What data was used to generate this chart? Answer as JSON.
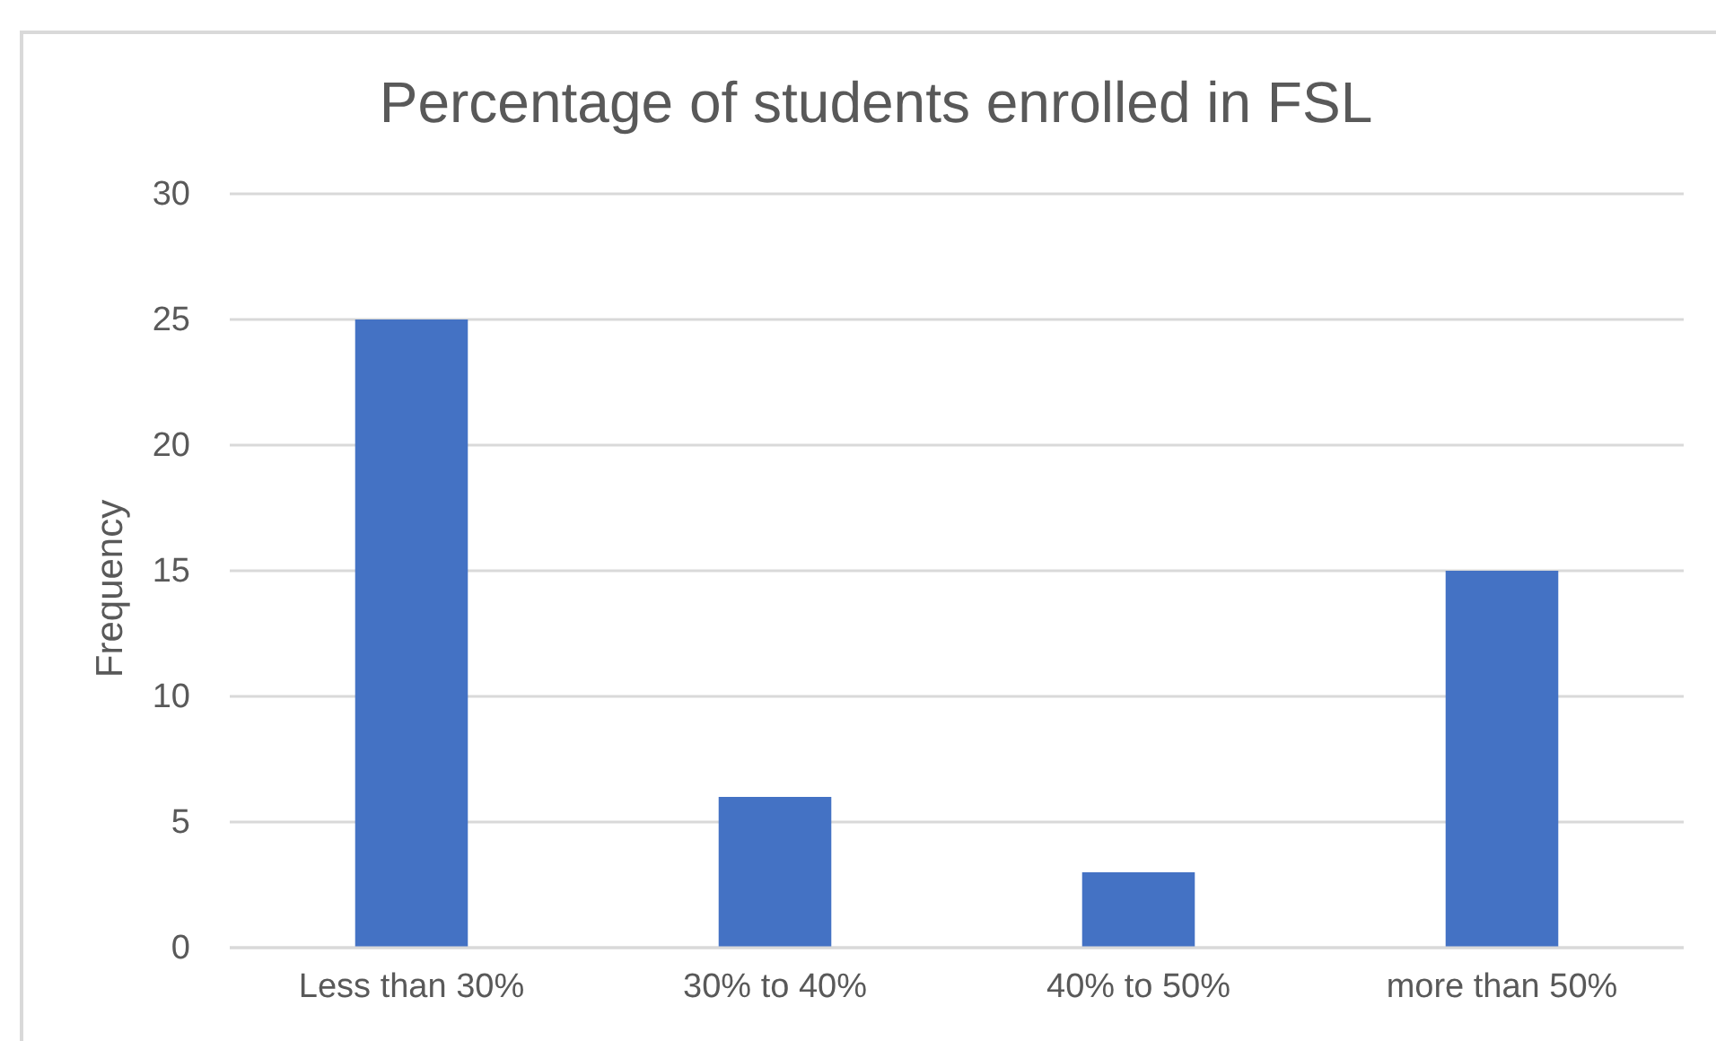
{
  "chart_data": {
    "type": "bar",
    "title": "Percentage of students enrolled in FSL",
    "ylabel": "Frequency",
    "categories": [
      "Less than 30%",
      "30% to 40%",
      "40% to 50%",
      "more than 50%"
    ],
    "values": [
      25,
      6,
      3,
      15
    ],
    "color": "#4472c4",
    "ylim": [
      0,
      30
    ],
    "yticks": [
      0,
      5,
      10,
      15,
      20,
      25,
      30
    ],
    "grid": "y"
  }
}
